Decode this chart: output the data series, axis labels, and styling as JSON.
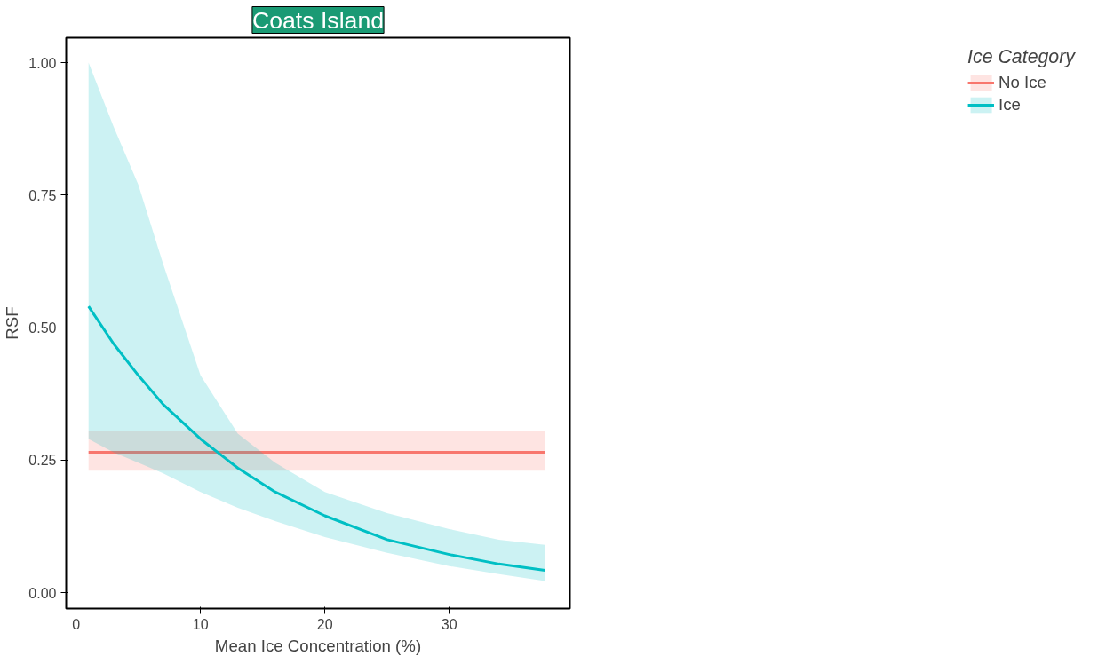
{
  "chart_data": {
    "type": "line",
    "title": "Coats Island",
    "xlabel": "Mean Ice Concentration (%)",
    "ylabel": "RSF",
    "legend_title": "Ice Category",
    "series": [
      {
        "name": "No Ice",
        "color": "#f8766d",
        "x": [
          1,
          37.7
        ],
        "values": [
          0.265,
          0.265
        ],
        "lower": [
          0.23,
          0.23
        ],
        "upper": [
          0.305,
          0.305
        ]
      },
      {
        "name": "Ice",
        "color": "#00bfc4",
        "x": [
          1,
          3,
          5,
          7,
          10,
          13,
          16,
          20,
          25,
          30,
          34,
          37.7
        ],
        "values": [
          0.54,
          0.47,
          0.41,
          0.355,
          0.29,
          0.235,
          0.19,
          0.145,
          0.1,
          0.072,
          0.054,
          0.042
        ],
        "lower": [
          0.29,
          0.265,
          0.245,
          0.225,
          0.19,
          0.16,
          0.135,
          0.105,
          0.075,
          0.05,
          0.035,
          0.022
        ],
        "upper": [
          1.0,
          0.88,
          0.77,
          0.62,
          0.41,
          0.3,
          0.245,
          0.19,
          0.15,
          0.12,
          0.1,
          0.09
        ]
      }
    ],
    "xlim": [
      -0.8,
      39.7
    ],
    "ylim": [
      -0.03,
      1.047
    ],
    "xticks": [
      0,
      10,
      20,
      30
    ],
    "yticks": [
      {
        "value": 0,
        "label": "0.00"
      },
      {
        "value": 0.25,
        "label": "0.25"
      },
      {
        "value": 0.5,
        "label": "0.50"
      },
      {
        "value": 0.75,
        "label": "0.75"
      },
      {
        "value": 1,
        "label": "1.00"
      }
    ],
    "grid": false,
    "legend": "right",
    "line_style": "solid",
    "marker": "none"
  }
}
